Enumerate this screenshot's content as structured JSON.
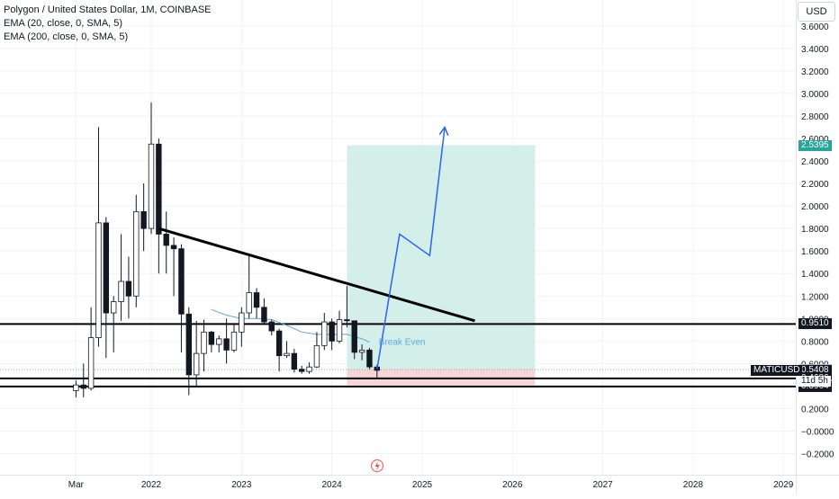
{
  "header": {
    "title": "Polygon / United States Dollar, 1M, COINBASE",
    "indicators": [
      "EMA (20, close, 0, SMA, 5)",
      "EMA (200, close, 0, SMA, 5)"
    ],
    "currency_button": "USD"
  },
  "annotations": {
    "break_even": "Break Even"
  },
  "price_tags": [
    {
      "label": "2.5395",
      "kind": "target",
      "bg": "#26a69a",
      "fg": "#ffffff",
      "value": 2.5395
    },
    {
      "label": "0.9510",
      "kind": "level",
      "bg": "#131722",
      "fg": "#ffffff",
      "value": 0.951
    },
    {
      "label": "0.5471",
      "kind": "entry",
      "bg": "#b2b5be",
      "fg": "#ffffff",
      "value": 0.5471
    },
    {
      "label": "0.5408",
      "kind": "last",
      "bg": "#131722",
      "fg": "#ffffff",
      "value": 0.5408
    },
    {
      "label": "0.4686",
      "kind": "level",
      "bg": "#131722",
      "fg": "#ffffff",
      "value": 0.4686
    },
    {
      "label": "0.4088",
      "kind": "stop",
      "bg": "#ef5350",
      "fg": "#ffffff",
      "value": 0.4088
    },
    {
      "label": "0.3964",
      "kind": "level",
      "bg": "#131722",
      "fg": "#ffffff",
      "value": 0.3964
    }
  ],
  "symbol_tag": {
    "symbol": "MATICUSD",
    "countdown": "11d 5h"
  },
  "colors": {
    "up": "#ffffff",
    "down": "#131722",
    "profit_zone": "#d4efe9",
    "loss_zone": "#f7d5d7",
    "projection": "#2962ff",
    "ema": "#5aa9d6",
    "grid": "#f0f3fa",
    "axis_text": "#131722"
  },
  "chart_data": {
    "type": "candlestick",
    "title": "Polygon / United States Dollar, 1M, COINBASE",
    "xlabel": "",
    "ylabel": "",
    "ylim": [
      -0.3,
      3.7
    ],
    "y_ticks": [
      "3.6000",
      "3.4000",
      "3.2000",
      "3.0000",
      "2.8000",
      "2.6000",
      "2.4000",
      "2.2000",
      "2.0000",
      "1.8000",
      "1.6000",
      "1.4000",
      "1.2000",
      "1.0000",
      "0.8000",
      "0.6000",
      "0.4000",
      "0.2000",
      "−0.0000",
      "−0.2000"
    ],
    "y_tick_values": [
      3.6,
      3.4,
      3.2,
      3.0,
      2.8,
      2.6,
      2.4,
      2.2,
      2.0,
      1.8,
      1.6,
      1.4,
      1.2,
      1.0,
      0.8,
      0.6,
      0.4,
      0.2,
      0.0,
      -0.2
    ],
    "x_ticks": [
      "Mar",
      "2022",
      "2023",
      "2024",
      "2025",
      "2026",
      "2027",
      "2028",
      "2029"
    ],
    "x_tick_values": [
      "2021-03",
      "2022-01",
      "2023-01",
      "2024-01",
      "2025-01",
      "2026-01",
      "2027-01",
      "2028-01",
      "2029-01"
    ],
    "candles": [
      {
        "date": "2021-03",
        "o": 0.36,
        "h": 0.45,
        "l": 0.3,
        "c": 0.41
      },
      {
        "date": "2021-04",
        "o": 0.41,
        "h": 0.6,
        "l": 0.3,
        "c": 0.38
      },
      {
        "date": "2021-05",
        "o": 0.38,
        "h": 1.1,
        "l": 0.36,
        "c": 0.83
      },
      {
        "date": "2021-06",
        "o": 0.83,
        "h": 2.7,
        "l": 0.75,
        "c": 1.85
      },
      {
        "date": "2021-07",
        "o": 1.85,
        "h": 1.9,
        "l": 0.65,
        "c": 1.05
      },
      {
        "date": "2021-08",
        "o": 1.05,
        "h": 1.2,
        "l": 0.7,
        "c": 1.15
      },
      {
        "date": "2021-09",
        "o": 1.15,
        "h": 1.75,
        "l": 0.98,
        "c": 1.33
      },
      {
        "date": "2021-10",
        "o": 1.33,
        "h": 1.55,
        "l": 1.0,
        "c": 1.2
      },
      {
        "date": "2021-11",
        "o": 1.2,
        "h": 2.1,
        "l": 1.1,
        "c": 1.95
      },
      {
        "date": "2021-12",
        "o": 1.95,
        "h": 2.2,
        "l": 1.6,
        "c": 1.8
      },
      {
        "date": "2022-01",
        "o": 1.8,
        "h": 2.92,
        "l": 1.75,
        "c": 2.55
      },
      {
        "date": "2022-02",
        "o": 2.55,
        "h": 2.6,
        "l": 1.4,
        "c": 1.75
      },
      {
        "date": "2022-03",
        "o": 1.75,
        "h": 1.95,
        "l": 1.4,
        "c": 1.65
      },
      {
        "date": "2022-04",
        "o": 1.65,
        "h": 1.72,
        "l": 1.2,
        "c": 1.62
      },
      {
        "date": "2022-05",
        "o": 1.62,
        "h": 1.66,
        "l": 0.7,
        "c": 1.04
      },
      {
        "date": "2022-06",
        "o": 1.04,
        "h": 1.1,
        "l": 0.32,
        "c": 0.5
      },
      {
        "date": "2022-07",
        "o": 0.5,
        "h": 0.98,
        "l": 0.4,
        "c": 0.69
      },
      {
        "date": "2022-08",
        "o": 0.69,
        "h": 0.99,
        "l": 0.53,
        "c": 0.88
      },
      {
        "date": "2022-09",
        "o": 0.88,
        "h": 0.89,
        "l": 0.7,
        "c": 0.77
      },
      {
        "date": "2022-10",
        "o": 0.77,
        "h": 0.85,
        "l": 0.7,
        "c": 0.82
      },
      {
        "date": "2022-11",
        "o": 0.82,
        "h": 1.0,
        "l": 0.6,
        "c": 0.72
      },
      {
        "date": "2022-12",
        "o": 0.72,
        "h": 0.95,
        "l": 0.7,
        "c": 0.88
      },
      {
        "date": "2023-01",
        "o": 0.88,
        "h": 1.1,
        "l": 0.75,
        "c": 1.05
      },
      {
        "date": "2023-02",
        "o": 1.05,
        "h": 1.56,
        "l": 1.0,
        "c": 1.23
      },
      {
        "date": "2023-03",
        "o": 1.23,
        "h": 1.27,
        "l": 1.0,
        "c": 1.1
      },
      {
        "date": "2023-04",
        "o": 1.1,
        "h": 1.18,
        "l": 0.95,
        "c": 0.97
      },
      {
        "date": "2023-05",
        "o": 0.97,
        "h": 0.99,
        "l": 0.85,
        "c": 0.89
      },
      {
        "date": "2023-06",
        "o": 0.89,
        "h": 0.91,
        "l": 0.53,
        "c": 0.67
      },
      {
        "date": "2023-07",
        "o": 0.67,
        "h": 0.8,
        "l": 0.65,
        "c": 0.69
      },
      {
        "date": "2023-08",
        "o": 0.69,
        "h": 0.73,
        "l": 0.52,
        "c": 0.55
      },
      {
        "date": "2023-09",
        "o": 0.55,
        "h": 0.58,
        "l": 0.51,
        "c": 0.53
      },
      {
        "date": "2023-10",
        "o": 0.53,
        "h": 0.61,
        "l": 0.51,
        "c": 0.57
      },
      {
        "date": "2023-11",
        "o": 0.57,
        "h": 0.88,
        "l": 0.56,
        "c": 0.76
      },
      {
        "date": "2023-12",
        "o": 0.76,
        "h": 1.05,
        "l": 0.72,
        "c": 0.97
      },
      {
        "date": "2024-01",
        "o": 0.97,
        "h": 1.0,
        "l": 0.72,
        "c": 0.8
      },
      {
        "date": "2024-02",
        "o": 0.8,
        "h": 1.07,
        "l": 0.78,
        "c": 0.99
      },
      {
        "date": "2024-03",
        "o": 0.99,
        "h": 1.29,
        "l": 0.92,
        "c": 0.98
      },
      {
        "date": "2024-04",
        "o": 0.98,
        "h": 0.98,
        "l": 0.64,
        "c": 0.7
      },
      {
        "date": "2024-05",
        "o": 0.7,
        "h": 0.77,
        "l": 0.63,
        "c": 0.72
      },
      {
        "date": "2024-06",
        "o": 0.72,
        "h": 0.74,
        "l": 0.55,
        "c": 0.57
      },
      {
        "date": "2024-07",
        "o": 0.57,
        "h": 0.59,
        "l": 0.47,
        "c": 0.54
      }
    ],
    "ema_20": [
      {
        "date": "2022-09",
        "v": 1.08
      },
      {
        "date": "2022-11",
        "v": 1.03
      },
      {
        "date": "2023-01",
        "v": 1.0
      },
      {
        "date": "2023-03",
        "v": 1.0
      },
      {
        "date": "2023-05",
        "v": 0.99
      },
      {
        "date": "2023-07",
        "v": 0.94
      },
      {
        "date": "2023-09",
        "v": 0.88
      },
      {
        "date": "2023-11",
        "v": 0.86
      },
      {
        "date": "2024-01",
        "v": 0.86
      },
      {
        "date": "2024-03",
        "v": 0.86
      },
      {
        "date": "2024-05",
        "v": 0.82
      },
      {
        "date": "2024-06",
        "v": 0.79
      }
    ],
    "horizontal_levels": [
      0.951,
      0.4686,
      0.3964
    ],
    "trendline": {
      "from": {
        "date": "2022-02",
        "v": 1.8
      },
      "to": {
        "date": "2025-08",
        "v": 0.98
      }
    },
    "position": {
      "start": "2024-03",
      "end": "2026-04",
      "entry": 0.5471,
      "target": 2.5395,
      "stop": 0.4088
    },
    "projection_path": [
      {
        "date": "2024-07",
        "v": 0.55
      },
      {
        "date": "2024-10",
        "v": 1.75
      },
      {
        "date": "2025-02",
        "v": 1.56
      },
      {
        "date": "2025-04",
        "v": 2.7
      }
    ]
  }
}
